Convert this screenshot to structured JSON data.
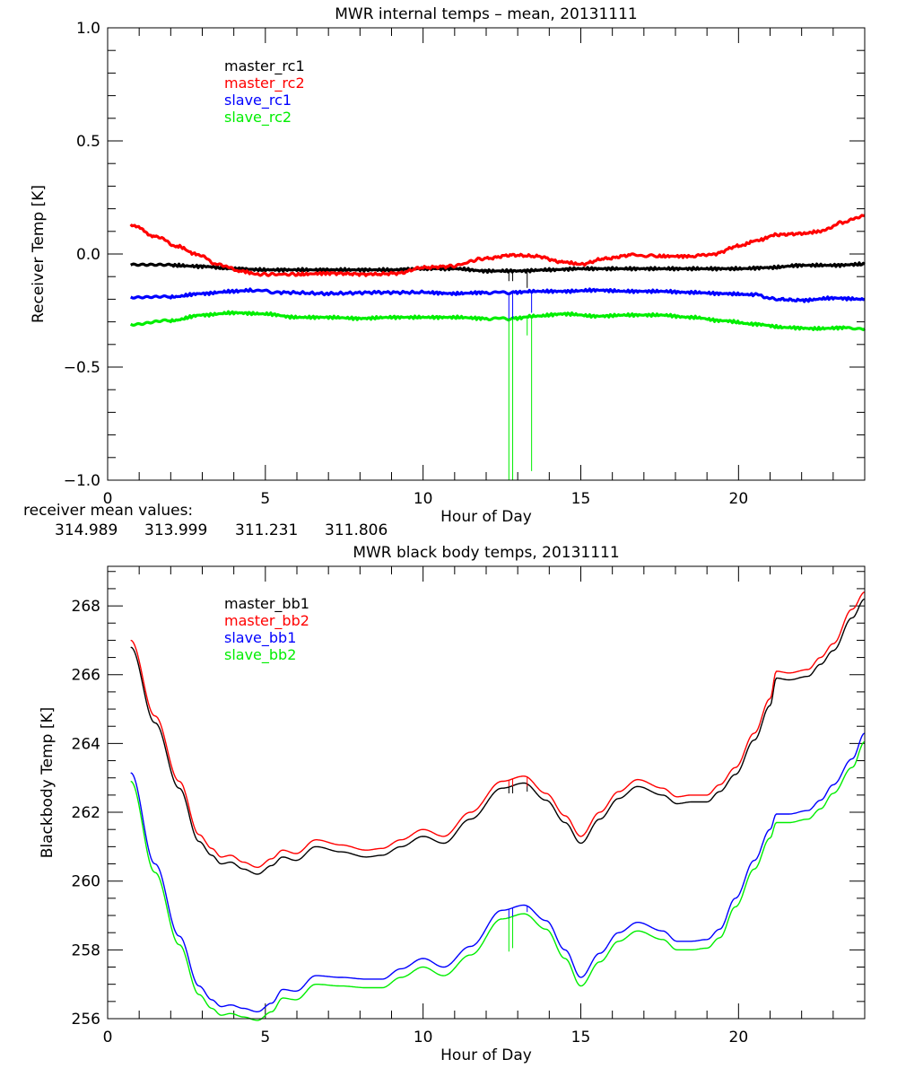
{
  "chart_data": [
    {
      "type": "line",
      "title": "MWR internal temps – mean, 20131111",
      "xlabel": "Hour of Day",
      "ylabel": "Receiver Temp [K]",
      "xlim": [
        0,
        24
      ],
      "ylim": [
        -1.0,
        1.0
      ],
      "x_ticks": [
        "0",
        "5",
        "10",
        "15",
        "20"
      ],
      "y_ticks": [
        "1.0",
        "0.5",
        "0.0",
        "-0.5",
        "-1.0"
      ],
      "grid": false,
      "legend_position": "top-left",
      "series": [
        {
          "name": "master_rc1",
          "color": "#000000",
          "x": [
            0.73,
            2,
            3,
            4,
            5,
            6,
            7,
            8,
            9,
            10,
            11,
            12,
            13,
            14,
            15,
            16,
            17,
            18,
            19,
            20,
            21,
            22,
            23,
            24
          ],
          "values": [
            -0.05,
            -0.05,
            -0.055,
            -0.065,
            -0.07,
            -0.07,
            -0.07,
            -0.07,
            -0.07,
            -0.065,
            -0.065,
            -0.075,
            -0.075,
            -0.07,
            -0.065,
            -0.065,
            -0.065,
            -0.065,
            -0.065,
            -0.065,
            -0.06,
            -0.05,
            -0.05,
            -0.045
          ]
        },
        {
          "name": "master_rc2",
          "color": "#ff0000",
          "x": [
            0.73,
            1.5,
            2.2,
            2.8,
            3.5,
            4.2,
            4.8,
            6,
            7,
            8.4,
            9.2,
            10,
            10.8,
            12,
            12.8,
            13.6,
            14.4,
            15,
            15.8,
            16.6,
            17.5,
            18.5,
            19.2,
            20,
            20.6,
            21.2,
            22,
            22.6,
            23.3,
            24
          ],
          "values": [
            0.13,
            0.08,
            0.035,
            0.0,
            -0.045,
            -0.075,
            -0.09,
            -0.09,
            -0.085,
            -0.09,
            -0.085,
            -0.06,
            -0.055,
            -0.02,
            -0.005,
            -0.01,
            -0.035,
            -0.045,
            -0.02,
            -0.005,
            -0.01,
            -0.01,
            0.0,
            0.035,
            0.06,
            0.085,
            0.09,
            0.1,
            0.14,
            0.17
          ]
        },
        {
          "name": "slave_rc1",
          "color": "#0000ff",
          "x": [
            0.73,
            2,
            3,
            4,
            4.6,
            5.5,
            7,
            8.5,
            10,
            11,
            12,
            12.9,
            13.5,
            14.5,
            15.5,
            16.5,
            17.5,
            18.5,
            19.5,
            20.5,
            21.2,
            22,
            23,
            24
          ],
          "values": [
            -0.195,
            -0.19,
            -0.175,
            -0.165,
            -0.16,
            -0.17,
            -0.175,
            -0.17,
            -0.17,
            -0.175,
            -0.17,
            -0.17,
            -0.165,
            -0.165,
            -0.16,
            -0.165,
            -0.165,
            -0.17,
            -0.175,
            -0.18,
            -0.2,
            -0.205,
            -0.195,
            -0.2
          ]
        },
        {
          "name": "slave_rc2",
          "color": "#00ee00",
          "x": [
            0.73,
            2,
            3,
            4,
            5,
            6,
            7,
            8,
            9,
            10,
            11,
            12,
            12.9,
            13.5,
            14.5,
            15.5,
            16.5,
            17.5,
            18.5,
            19.5,
            20.5,
            21.5,
            22.5,
            23.5,
            24
          ],
          "values": [
            -0.315,
            -0.295,
            -0.27,
            -0.26,
            -0.265,
            -0.28,
            -0.28,
            -0.285,
            -0.28,
            -0.28,
            -0.28,
            -0.285,
            -0.285,
            -0.275,
            -0.265,
            -0.275,
            -0.27,
            -0.27,
            -0.28,
            -0.295,
            -0.31,
            -0.325,
            -0.33,
            -0.325,
            -0.33
          ]
        }
      ],
      "spikes": [
        {
          "series": "master_rc1",
          "x": 12.72,
          "to": -0.12
        },
        {
          "series": "master_rc1",
          "x": 12.84,
          "to": -0.12
        },
        {
          "series": "master_rc1",
          "x": 13.3,
          "to": -0.15
        },
        {
          "series": "slave_rc1",
          "x": 12.72,
          "to": -0.3
        },
        {
          "series": "slave_rc1",
          "x": 12.84,
          "to": -0.3
        },
        {
          "series": "slave_rc1",
          "x": 13.44,
          "to": -0.26
        },
        {
          "series": "slave_rc2",
          "x": 12.72,
          "to": -1.0
        },
        {
          "series": "slave_rc2",
          "x": 12.84,
          "to": -1.0
        },
        {
          "series": "slave_rc2",
          "x": 13.3,
          "to": -0.36
        },
        {
          "series": "slave_rc2",
          "x": 13.44,
          "to": -0.96
        }
      ],
      "annotation": {
        "label": "receiver mean values:",
        "values": [
          {
            "text": "314.989",
            "color": "#000000"
          },
          {
            "text": "313.999",
            "color": "#ff0000"
          },
          {
            "text": "311.231",
            "color": "#0000ff"
          },
          {
            "text": "311.806",
            "color": "#00ee00"
          }
        ]
      }
    },
    {
      "type": "line",
      "title": "MWR black body temps, 20131111",
      "xlabel": "Hour of Day",
      "ylabel": "Blackbody Temp [K]",
      "xlim": [
        0,
        24
      ],
      "ylim": [
        256,
        269.15
      ],
      "x_ticks": [
        "0",
        "5",
        "10",
        "15",
        "20"
      ],
      "y_ticks": [
        "256",
        "258",
        "260",
        "262",
        "264",
        "266",
        "268"
      ],
      "grid": false,
      "legend_position": "top-left",
      "series": [
        {
          "name": "master_bb1",
          "color": "#000000",
          "x": [
            0.73,
            1.5,
            2.27,
            2.9,
            3.3,
            3.6,
            3.9,
            4.3,
            4.75,
            5.2,
            5.55,
            5.97,
            6.6,
            7.4,
            8.2,
            8.7,
            9.3,
            10.0,
            10.65,
            11.5,
            12.5,
            13.2,
            13.9,
            14.5,
            15.0,
            15.6,
            16.2,
            16.8,
            17.6,
            18.05,
            18.5,
            19.0,
            19.4,
            19.9,
            20.5,
            21.0,
            21.2,
            21.6,
            22.2,
            22.6,
            23.0,
            23.6,
            24.0
          ],
          "values": [
            266.8,
            264.6,
            262.7,
            261.15,
            260.75,
            260.5,
            260.55,
            260.35,
            260.2,
            260.45,
            260.7,
            260.6,
            261.0,
            260.85,
            260.7,
            260.75,
            261.0,
            261.3,
            261.1,
            261.8,
            262.7,
            262.85,
            262.35,
            261.7,
            261.1,
            261.8,
            262.4,
            262.75,
            262.5,
            262.25,
            262.3,
            262.3,
            262.6,
            263.1,
            264.1,
            265.1,
            265.9,
            265.85,
            265.95,
            266.3,
            266.7,
            267.65,
            268.2
          ]
        },
        {
          "name": "master_bb2",
          "color": "#ff0000",
          "x": [
            0.73,
            1.5,
            2.27,
            2.9,
            3.3,
            3.6,
            3.9,
            4.3,
            4.75,
            5.2,
            5.55,
            5.97,
            6.6,
            7.4,
            8.2,
            8.7,
            9.3,
            10.0,
            10.65,
            11.5,
            12.5,
            13.2,
            13.9,
            14.5,
            15.0,
            15.6,
            16.2,
            16.8,
            17.6,
            18.05,
            18.5,
            19.0,
            19.4,
            19.9,
            20.5,
            21.0,
            21.2,
            21.6,
            22.2,
            22.6,
            23.0,
            23.6,
            24.0
          ],
          "values": [
            267.0,
            264.8,
            262.9,
            261.35,
            260.95,
            260.7,
            260.75,
            260.55,
            260.4,
            260.65,
            260.9,
            260.8,
            261.2,
            261.05,
            260.9,
            260.95,
            261.2,
            261.5,
            261.3,
            262.0,
            262.9,
            263.05,
            262.55,
            261.9,
            261.3,
            262.0,
            262.6,
            262.95,
            262.7,
            262.45,
            262.5,
            262.5,
            262.8,
            263.3,
            264.3,
            265.3,
            266.1,
            266.05,
            266.15,
            266.5,
            266.9,
            267.9,
            268.4
          ]
        },
        {
          "name": "slave_bb1",
          "color": "#0000ff",
          "x": [
            0.73,
            1.5,
            2.27,
            2.9,
            3.3,
            3.6,
            3.9,
            4.3,
            4.75,
            5.2,
            5.55,
            5.97,
            6.6,
            7.4,
            8.2,
            8.7,
            9.3,
            10.0,
            10.65,
            11.5,
            12.5,
            13.2,
            13.9,
            14.5,
            15.0,
            15.6,
            16.2,
            16.8,
            17.6,
            18.05,
            18.5,
            19.0,
            19.4,
            19.9,
            20.5,
            21.0,
            21.2,
            21.6,
            22.2,
            22.6,
            23.0,
            23.6,
            24.0
          ],
          "values": [
            263.15,
            260.5,
            258.4,
            256.95,
            256.55,
            256.35,
            256.4,
            256.3,
            256.2,
            256.45,
            256.85,
            256.8,
            257.25,
            257.2,
            257.15,
            257.15,
            257.45,
            257.75,
            257.5,
            258.1,
            259.15,
            259.3,
            258.85,
            258.0,
            257.2,
            257.9,
            258.5,
            258.8,
            258.55,
            258.25,
            258.25,
            258.3,
            258.6,
            259.5,
            260.6,
            261.5,
            261.95,
            261.95,
            262.05,
            262.35,
            262.8,
            263.55,
            264.3
          ]
        },
        {
          "name": "slave_bb2",
          "color": "#00ee00",
          "x": [
            0.73,
            1.5,
            2.27,
            2.9,
            3.3,
            3.6,
            3.9,
            4.3,
            4.75,
            5.2,
            5.55,
            5.97,
            6.6,
            7.4,
            8.2,
            8.7,
            9.3,
            10.0,
            10.65,
            11.5,
            12.5,
            13.2,
            13.9,
            14.5,
            15.0,
            15.6,
            16.2,
            16.8,
            17.6,
            18.05,
            18.5,
            19.0,
            19.4,
            19.9,
            20.5,
            21.0,
            21.2,
            21.6,
            22.2,
            22.6,
            23.0,
            23.6,
            24.0
          ],
          "values": [
            262.9,
            260.25,
            258.15,
            256.7,
            256.3,
            256.1,
            256.15,
            256.05,
            255.95,
            256.2,
            256.6,
            256.55,
            257.0,
            256.95,
            256.9,
            256.9,
            257.2,
            257.5,
            257.25,
            257.85,
            258.9,
            259.05,
            258.6,
            257.75,
            256.95,
            257.65,
            258.25,
            258.55,
            258.3,
            258.0,
            258.0,
            258.05,
            258.35,
            259.25,
            260.35,
            261.25,
            261.7,
            261.7,
            261.8,
            262.1,
            262.55,
            263.3,
            264.05
          ]
        }
      ],
      "spikes": [
        {
          "series": "master_bb1",
          "x": 12.72,
          "to": 262.55
        },
        {
          "series": "master_bb1",
          "x": 12.84,
          "to": 262.55
        },
        {
          "series": "master_bb1",
          "x": 13.3,
          "to": 262.6
        },
        {
          "series": "master_bb2",
          "x": 12.72,
          "to": 262.75
        },
        {
          "series": "master_bb2",
          "x": 12.84,
          "to": 262.75
        },
        {
          "series": "master_bb2",
          "x": 13.3,
          "to": 262.75
        },
        {
          "series": "slave_bb1",
          "x": 12.72,
          "to": 258.9
        },
        {
          "series": "slave_bb1",
          "x": 12.84,
          "to": 258.9
        },
        {
          "series": "slave_bb1",
          "x": 13.3,
          "to": 259.1
        },
        {
          "series": "slave_bb2",
          "x": 12.72,
          "to": 257.95
        },
        {
          "series": "slave_bb2",
          "x": 12.84,
          "to": 258.05
        }
      ]
    }
  ]
}
